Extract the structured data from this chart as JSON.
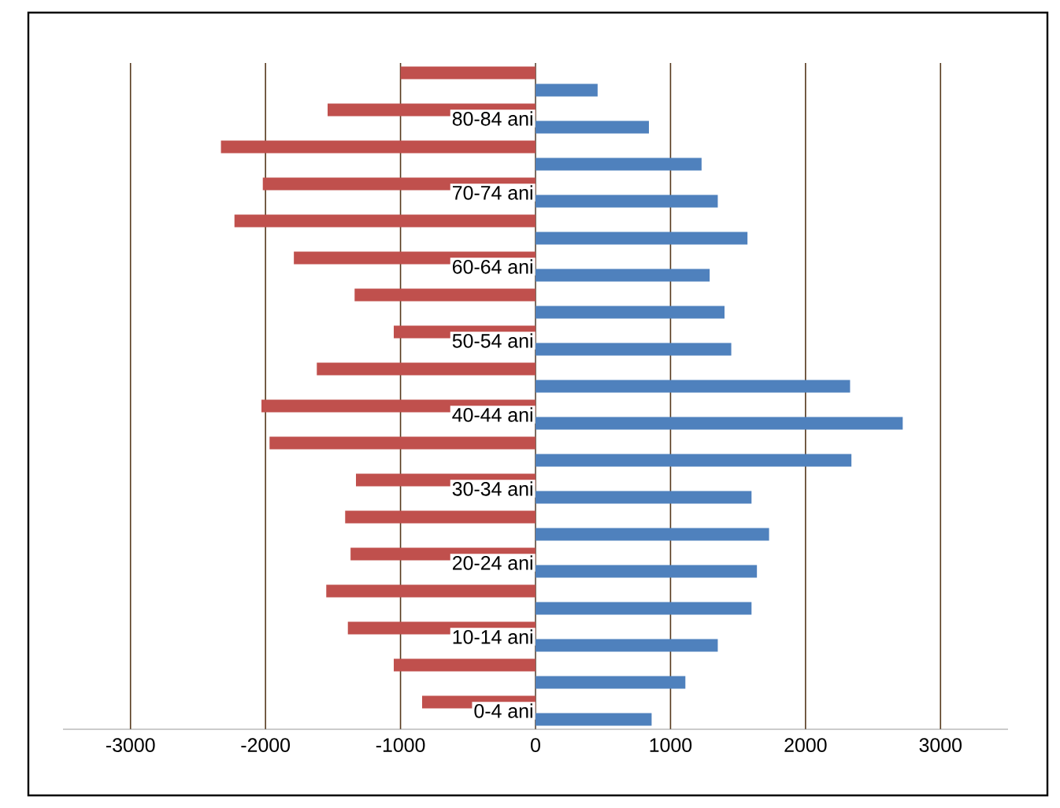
{
  "chart_data": {
    "type": "bar",
    "orientation": "horizontal",
    "categories": [
      null,
      "80-84 ani",
      null,
      "70-74 ani",
      null,
      "60-64 ani",
      null,
      "50-54 ani",
      null,
      "40-44 ani",
      null,
      "30-34 ani",
      null,
      "20-24 ani",
      null,
      "10-14 ani",
      null,
      "0-4 ani"
    ],
    "series": [
      {
        "color": "#c0504d",
        "values": [
          -1000,
          -1540,
          -2330,
          -2020,
          -2230,
          -1790,
          -1340,
          -1050,
          -1620,
          -2030,
          -1970,
          -1330,
          -1410,
          -1370,
          -1550,
          -1390,
          -1050,
          -840
        ]
      },
      {
        "color": "#4f81bd",
        "values": [
          460,
          840,
          1230,
          1350,
          1570,
          1290,
          1400,
          1450,
          2330,
          2720,
          2340,
          1600,
          1730,
          1640,
          1600,
          1350,
          1110,
          860
        ]
      }
    ],
    "xlim": [
      -3500,
      3500
    ],
    "xticks": [
      -3000,
      -2000,
      -1000,
      0,
      1000,
      2000,
      3000
    ],
    "grid": "x"
  }
}
